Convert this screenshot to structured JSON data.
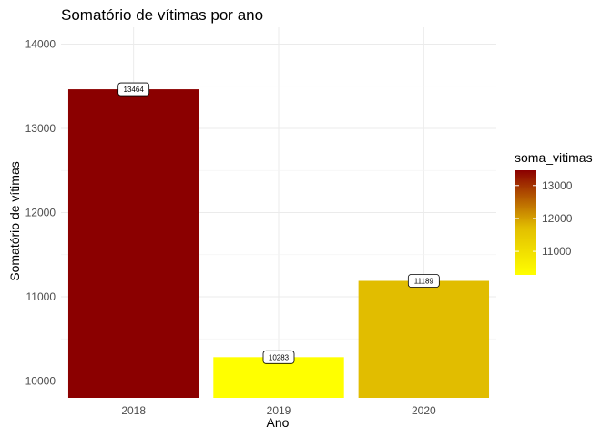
{
  "chart_data": {
    "type": "bar",
    "title": "Somatório de vítimas por ano",
    "xlabel": "Ano",
    "ylabel": "Somatório de vítimas",
    "categories": [
      "2018",
      "2019",
      "2020"
    ],
    "values": [
      13464,
      10283,
      11189
    ],
    "data_labels": [
      "13464",
      "10283",
      "11189"
    ],
    "ylim": [
      9800,
      14200
    ],
    "y_ticks": [
      10000,
      11000,
      12000,
      13000,
      14000
    ],
    "grid": true,
    "legend": {
      "title": "soma_vitimas",
      "placement": "right",
      "ticks": [
        11000,
        12000,
        13000
      ],
      "color_low": "#ffff00",
      "color_mid": "#e2be00",
      "color_high": "#8b0000"
    }
  }
}
